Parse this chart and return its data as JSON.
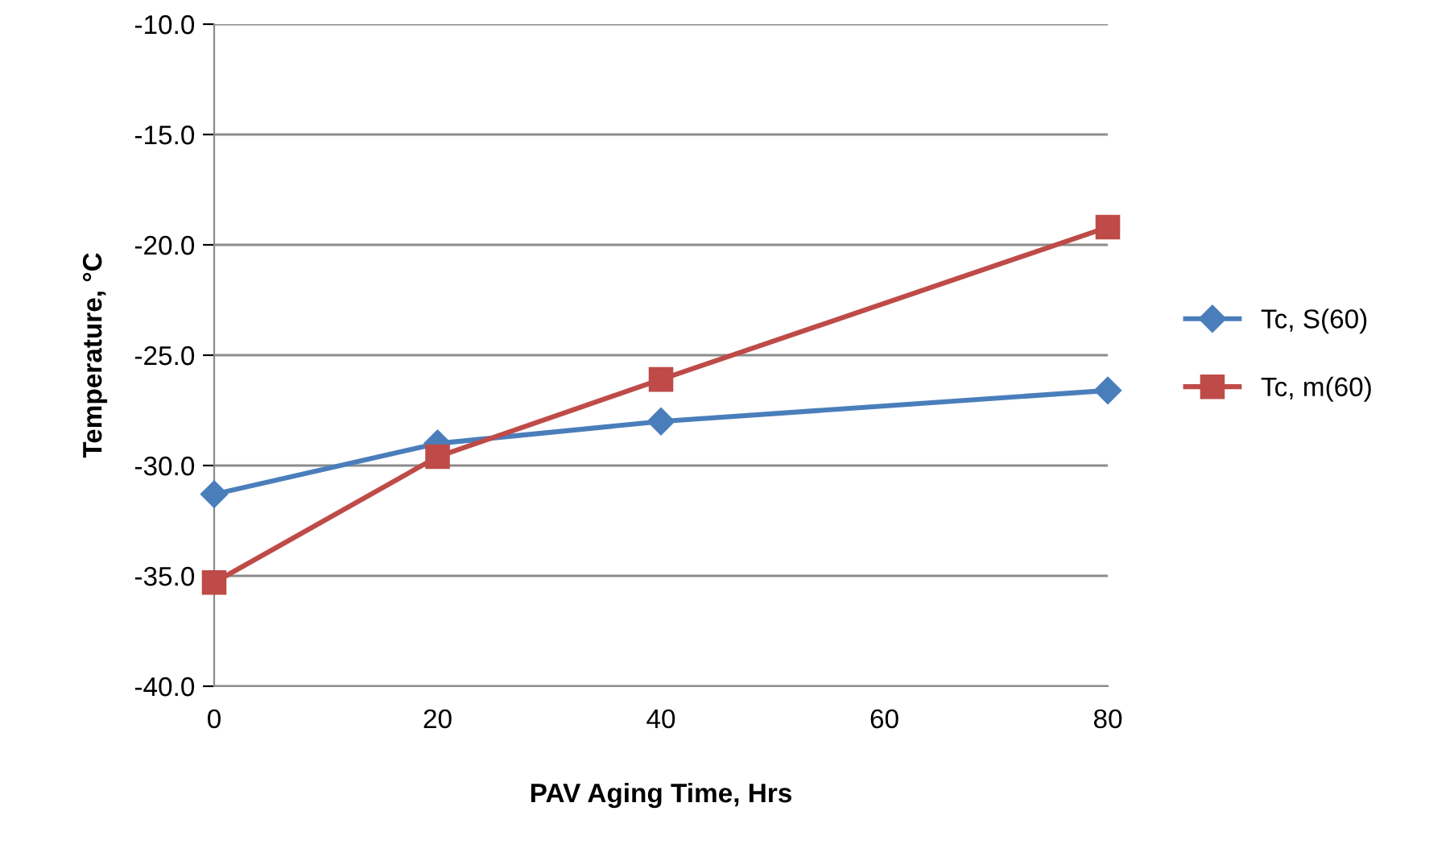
{
  "chart_data": {
    "type": "line",
    "xlabel": "PAV Aging Time, Hrs",
    "ylabel": "Temperature, °C",
    "x": [
      0,
      20,
      40,
      80
    ],
    "series": [
      {
        "name": "Tc, S(60)",
        "color": "#4a7ebb",
        "marker": "diamond",
        "values": [
          -31.3,
          -29.0,
          -28.0,
          -26.6
        ]
      },
      {
        "name": "Tc, m(60)",
        "color": "#be4b48",
        "marker": "square",
        "values": [
          -35.3,
          -29.6,
          -26.1,
          -19.2
        ]
      }
    ],
    "xlim": [
      0,
      80
    ],
    "xticks": [
      0,
      20,
      40,
      60,
      80
    ],
    "ylim": [
      -40,
      -10
    ],
    "yticks": [
      {
        "value": -40,
        "label": "-40.0"
      },
      {
        "value": -35,
        "label": "-35.0"
      },
      {
        "value": -30,
        "label": "-30.0"
      },
      {
        "value": -25,
        "label": "-25.0"
      },
      {
        "value": -20,
        "label": "-20.0"
      },
      {
        "value": -15,
        "label": "-15.0"
      },
      {
        "value": -10,
        "label": "-10.0"
      }
    ],
    "grid": "y",
    "legend": "right",
    "line_style": "solid"
  }
}
